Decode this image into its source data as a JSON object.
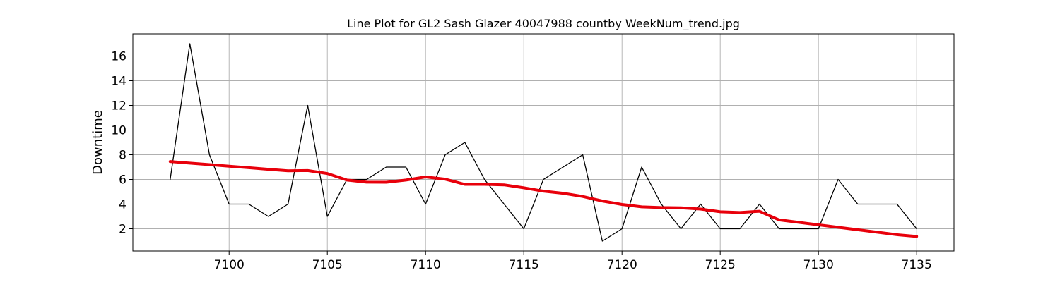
{
  "chart_data": {
    "type": "line",
    "title": "Line Plot for GL2 Sash Glazer 40047988 countby WeekNum_trend.jpg",
    "xlabel": "",
    "ylabel": "Downtime",
    "xlim": [
      7095.1,
      7136.9
    ],
    "ylim": [
      0.2,
      17.8
    ],
    "xticks": [
      7100,
      7105,
      7110,
      7115,
      7120,
      7125,
      7130,
      7135
    ],
    "yticks": [
      2,
      4,
      6,
      8,
      10,
      12,
      14,
      16
    ],
    "grid": true,
    "series": [
      {
        "color": "#000000",
        "x": [
          7097,
          7098,
          7099,
          7100,
          7101,
          7102,
          7103,
          7104,
          7105,
          7106,
          7107,
          7108,
          7109,
          7110,
          7111,
          7112,
          7113,
          7115,
          7116,
          7118,
          7119,
          7120,
          7121,
          7122,
          7123,
          7124,
          7125,
          7126,
          7127,
          7128,
          7129,
          7130,
          7131,
          7132,
          7133,
          7134,
          7135
        ],
        "y": [
          6,
          17,
          8,
          4,
          4,
          3,
          4,
          12,
          3,
          6,
          6,
          7,
          7,
          4,
          8,
          9,
          6,
          2,
          6,
          8,
          1,
          2,
          7,
          4,
          2,
          4,
          2,
          2,
          4,
          2,
          2,
          2,
          6,
          4,
          4,
          4,
          2
        ]
      },
      {
        "color": "#e8000b",
        "x": [
          7097,
          7098,
          7099,
          7100,
          7101,
          7102,
          7103,
          7104,
          7105,
          7106,
          7107,
          7108,
          7109,
          7110,
          7111,
          7112,
          7113,
          7114,
          7115,
          7116,
          7117,
          7118,
          7119,
          7120,
          7121,
          7122,
          7123,
          7124,
          7125,
          7126,
          7127,
          7128,
          7129,
          7130,
          7131,
          7132,
          7133,
          7134,
          7135
        ],
        "y": [
          7.45,
          7.32,
          7.2,
          7.07,
          6.95,
          6.82,
          6.7,
          6.72,
          6.48,
          5.95,
          5.78,
          5.77,
          5.95,
          6.2,
          6.02,
          5.6,
          5.6,
          5.56,
          5.32,
          5.05,
          4.88,
          4.62,
          4.25,
          3.97,
          3.78,
          3.72,
          3.7,
          3.6,
          3.38,
          3.32,
          3.42,
          2.72,
          2.52,
          2.32,
          2.12,
          1.92,
          1.72,
          1.52,
          1.38
        ]
      }
    ]
  }
}
